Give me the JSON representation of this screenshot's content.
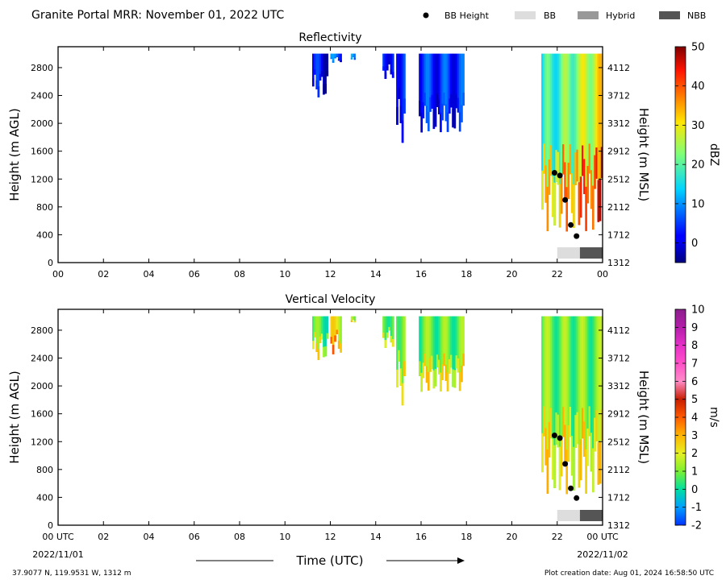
{
  "header": {
    "title": "Granite Portal MRR:  November 01, 2022 UTC"
  },
  "legend": [
    {
      "label": "BB Height",
      "kind": "dot",
      "color": "#000000"
    },
    {
      "label": "BB",
      "kind": "swatch",
      "color": "#dddddd"
    },
    {
      "label": "Hybrid",
      "kind": "swatch",
      "color": "#999999"
    },
    {
      "label": "NBB",
      "kind": "swatch",
      "color": "#555555"
    }
  ],
  "footer": {
    "location": "37.9077 N, 119.9531 W, 1312 m",
    "creation": "Plot creation date: Aug 01, 2024 16:58:50 UTC",
    "start_date": "2022/11/01",
    "end_date": "2022/11/02",
    "xlabel": "Time (UTC)"
  },
  "chart_data": [
    {
      "type": "heatmap",
      "title": "Reflectivity",
      "xlabel": "Time (UTC)",
      "ylabel": "Height (m AGL)",
      "ylabel_right": "Height (m MSL)",
      "x_ticks": [
        "00",
        "02",
        "04",
        "06",
        "08",
        "10",
        "12",
        "14",
        "16",
        "18",
        "20",
        "22",
        "00"
      ],
      "xlim_hours": [
        0,
        24
      ],
      "y_ticks": [
        0,
        400,
        800,
        1200,
        1600,
        2000,
        2400,
        2800
      ],
      "y_ticks_right": [
        1312,
        1712,
        2112,
        2512,
        2912,
        3312,
        3712,
        4112
      ],
      "ylim": [
        0,
        3100
      ],
      "colorbar": {
        "label": "dBZ",
        "min": -5,
        "max": 50,
        "ticks": [
          0,
          10,
          20,
          30,
          40,
          50
        ]
      },
      "echo_spans": [
        {
          "start_h": 11.2,
          "end_h": 11.9,
          "bottom_m": 2300,
          "value": 5
        },
        {
          "start_h": 12.0,
          "end_h": 12.5,
          "bottom_m": 2850,
          "value": 10
        },
        {
          "start_h": 12.9,
          "end_h": 13.1,
          "bottom_m": 2850,
          "value": 12
        },
        {
          "start_h": 14.3,
          "end_h": 14.8,
          "bottom_m": 2600,
          "value": 8
        },
        {
          "start_h": 14.9,
          "end_h": 15.3,
          "bottom_m": 1600,
          "value": 9
        },
        {
          "start_h": 15.9,
          "end_h": 17.9,
          "bottom_m": 1800,
          "value": 8
        },
        {
          "start_h": 21.3,
          "end_h": 24.0,
          "bottom_m": 300,
          "value": 22
        }
      ],
      "bright_band_heights": [
        {
          "time_h": 21.88,
          "height_m": 1290
        },
        {
          "time_h": 22.12,
          "height_m": 1250
        },
        {
          "time_h": 22.35,
          "height_m": 900
        },
        {
          "time_h": 22.6,
          "height_m": 540
        },
        {
          "time_h": 22.85,
          "height_m": 380
        }
      ],
      "bb_type_bar": [
        {
          "type": "BB",
          "start_h": 22.0,
          "end_h": 23.0
        },
        {
          "type": "NBB",
          "start_h": 23.0,
          "end_h": 24.0
        }
      ]
    },
    {
      "type": "heatmap",
      "title": "Vertical Velocity",
      "xlabel": "Time (UTC)",
      "ylabel": "Height (m AGL)",
      "ylabel_right": "Height (m MSL)",
      "x_ticks": [
        "00 UTC",
        "02",
        "04",
        "06",
        "08",
        "10",
        "12",
        "14",
        "16",
        "18",
        "20",
        "22",
        "00 UTC"
      ],
      "xlim_hours": [
        0,
        24
      ],
      "y_ticks": [
        0,
        400,
        800,
        1200,
        1600,
        2000,
        2400,
        2800
      ],
      "y_ticks_right": [
        1312,
        1712,
        2112,
        2512,
        2912,
        3312,
        3712,
        4112
      ],
      "ylim": [
        0,
        3100
      ],
      "colorbar": {
        "label": "m/s",
        "min": -2,
        "max": 10,
        "ticks": [
          -2,
          -1,
          0,
          1,
          2,
          3,
          4,
          5,
          6,
          7,
          8,
          9,
          10
        ]
      },
      "echo_spans": [
        {
          "start_h": 11.2,
          "end_h": 11.9,
          "bottom_m": 2300,
          "value": 1.2
        },
        {
          "start_h": 12.0,
          "end_h": 12.5,
          "bottom_m": 2400,
          "value": 2.5
        },
        {
          "start_h": 12.9,
          "end_h": 13.1,
          "bottom_m": 2850,
          "value": 1.5
        },
        {
          "start_h": 14.3,
          "end_h": 14.8,
          "bottom_m": 2500,
          "value": 1.5
        },
        {
          "start_h": 14.9,
          "end_h": 15.3,
          "bottom_m": 1600,
          "value": 1.8
        },
        {
          "start_h": 15.9,
          "end_h": 17.9,
          "bottom_m": 1850,
          "value": 1.4
        },
        {
          "start_h": 21.3,
          "end_h": 24.0,
          "bottom_m": 300,
          "value": 1.5
        }
      ],
      "bright_band_heights": [
        {
          "time_h": 21.88,
          "height_m": 1290
        },
        {
          "time_h": 22.12,
          "height_m": 1250
        },
        {
          "time_h": 22.35,
          "height_m": 880
        },
        {
          "time_h": 22.6,
          "height_m": 530
        },
        {
          "time_h": 22.85,
          "height_m": 390
        }
      ],
      "bb_type_bar": [
        {
          "type": "BB",
          "start_h": 22.0,
          "end_h": 23.0
        },
        {
          "type": "NBB",
          "start_h": 23.0,
          "end_h": 24.0
        }
      ]
    }
  ]
}
